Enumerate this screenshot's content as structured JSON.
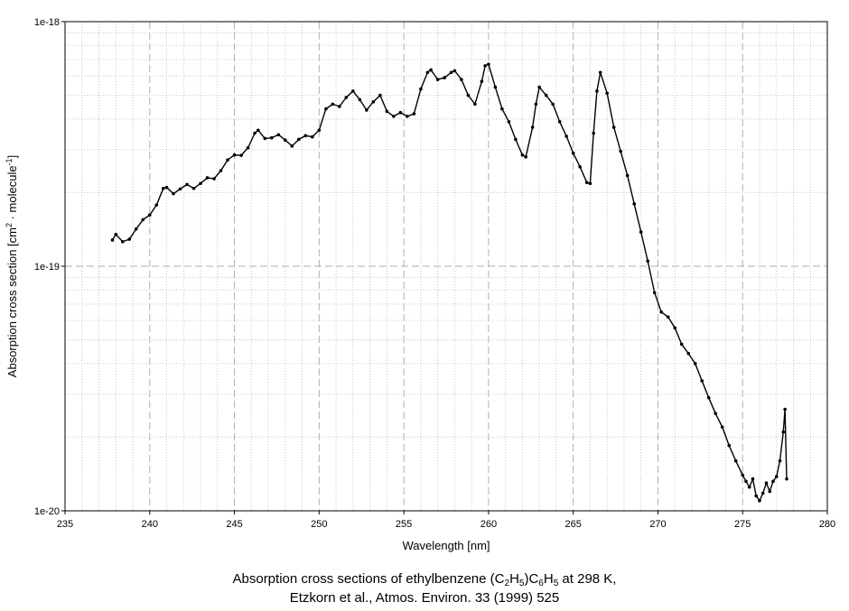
{
  "chart_data": {
    "type": "scatter",
    "title": "",
    "xlabel": "Wavelength [nm]",
    "ylabel": {
      "main": "Absorption cross section [cm",
      "sup1": "2",
      "mid": " · molecule",
      "sup2": "-1",
      "end": "]"
    },
    "xlim": [
      235,
      280
    ],
    "ylim": [
      1e-20,
      1e-18
    ],
    "yscale": "log",
    "grid": true,
    "legend": "none",
    "x_ticks": [
      235,
      240,
      245,
      250,
      255,
      260,
      265,
      270,
      275,
      280
    ],
    "x_tick_labels": [
      "235",
      "240",
      "245",
      "250",
      "255",
      "260",
      "265",
      "270",
      "275",
      "280"
    ],
    "y_ticks": [
      1e-20,
      1e-19,
      1e-18
    ],
    "y_tick_labels": [
      "1e-20",
      "1e-19",
      "1e-18"
    ],
    "series": [
      {
        "marker_color": "#000000",
        "x": [
          237.8,
          238.0,
          238.4,
          238.8,
          239.2,
          239.6,
          240.0,
          240.4,
          240.8,
          241.0,
          241.4,
          241.8,
          242.2,
          242.6,
          243.0,
          243.4,
          243.8,
          244.2,
          244.6,
          245.0,
          245.4,
          245.8,
          246.2,
          246.4,
          246.8,
          247.2,
          247.6,
          248.0,
          248.4,
          248.8,
          249.2,
          249.6,
          250.0,
          250.4,
          250.8,
          251.2,
          251.6,
          252.0,
          252.4,
          252.8,
          253.2,
          253.6,
          254.0,
          254.4,
          254.8,
          255.2,
          255.6,
          256.0,
          256.4,
          256.6,
          257.0,
          257.4,
          257.8,
          258.0,
          258.4,
          258.8,
          259.2,
          259.6,
          259.8,
          260.0,
          260.4,
          260.8,
          261.2,
          261.6,
          262.0,
          262.2,
          262.6,
          262.8,
          263.0,
          263.4,
          263.8,
          264.2,
          264.6,
          265.0,
          265.4,
          265.8,
          266.0,
          266.2,
          266.4,
          266.6,
          267.0,
          267.4,
          267.8,
          268.2,
          268.6,
          269.0,
          269.4,
          269.8,
          270.2,
          270.6,
          271.0,
          271.4,
          271.8,
          272.2,
          272.6,
          273.0,
          273.4,
          273.8,
          274.2,
          274.6,
          275.0,
          275.2,
          275.4,
          275.6,
          275.8,
          276.0,
          276.2,
          276.4,
          276.6,
          276.8,
          277.0,
          277.2,
          277.4,
          277.5,
          277.6
        ],
        "y": [
          1.28e-19,
          1.35e-19,
          1.26e-19,
          1.29e-19,
          1.42e-19,
          1.55e-19,
          1.62e-19,
          1.78e-19,
          2.08e-19,
          2.1e-19,
          1.98e-19,
          2.07e-19,
          2.16e-19,
          2.08e-19,
          2.18e-19,
          2.3e-19,
          2.28e-19,
          2.46e-19,
          2.72e-19,
          2.85e-19,
          2.84e-19,
          3.05e-19,
          3.5e-19,
          3.6e-19,
          3.33e-19,
          3.35e-19,
          3.45e-19,
          3.28e-19,
          3.1e-19,
          3.3e-19,
          3.42e-19,
          3.38e-19,
          3.6e-19,
          4.4e-19,
          4.6e-19,
          4.5e-19,
          4.9e-19,
          5.2e-19,
          4.8e-19,
          4.35e-19,
          4.7e-19,
          5e-19,
          4.3e-19,
          4.1e-19,
          4.25e-19,
          4.1e-19,
          4.2e-19,
          5.3e-19,
          6.2e-19,
          6.35e-19,
          5.8e-19,
          5.9e-19,
          6.2e-19,
          6.3e-19,
          5.8e-19,
          5e-19,
          4.6e-19,
          5.7e-19,
          6.6e-19,
          6.7e-19,
          5.4e-19,
          4.4e-19,
          3.9e-19,
          3.3e-19,
          2.85e-19,
          2.8e-19,
          3.7e-19,
          4.6e-19,
          5.4e-19,
          5e-19,
          4.6e-19,
          3.9e-19,
          3.4e-19,
          2.9e-19,
          2.55e-19,
          2.2e-19,
          2.18e-19,
          3.5e-19,
          5.2e-19,
          6.2e-19,
          5.1e-19,
          3.7e-19,
          2.95e-19,
          2.35e-19,
          1.8e-19,
          1.38e-19,
          1.05e-19,
          7.8e-20,
          6.5e-20,
          6.2e-20,
          5.6e-20,
          4.8e-20,
          4.4e-20,
          4e-20,
          3.4e-20,
          2.9e-20,
          2.5e-20,
          2.2e-20,
          1.85e-20,
          1.6e-20,
          1.4e-20,
          1.32e-20,
          1.25e-20,
          1.35e-20,
          1.15e-20,
          1.1e-20,
          1.18e-20,
          1.3e-20,
          1.2e-20,
          1.32e-20,
          1.38e-20,
          1.6e-20,
          2.1e-20,
          2.6e-20,
          1.35e-20
        ]
      }
    ]
  },
  "caption": {
    "line1_prefix": "Absorption cross sections of ethylbenzene (C",
    "line1_sub1": "2",
    "line1_h1": "H",
    "line1_sub2": "5",
    "line1_close": ")C",
    "line1_sub3": "6",
    "line1_h2": "H",
    "line1_sub4": "5",
    "line1_suffix": " at 298 K,",
    "line2": "Etzkorn et al., Atmos. Environ. 33 (1999) 525"
  }
}
